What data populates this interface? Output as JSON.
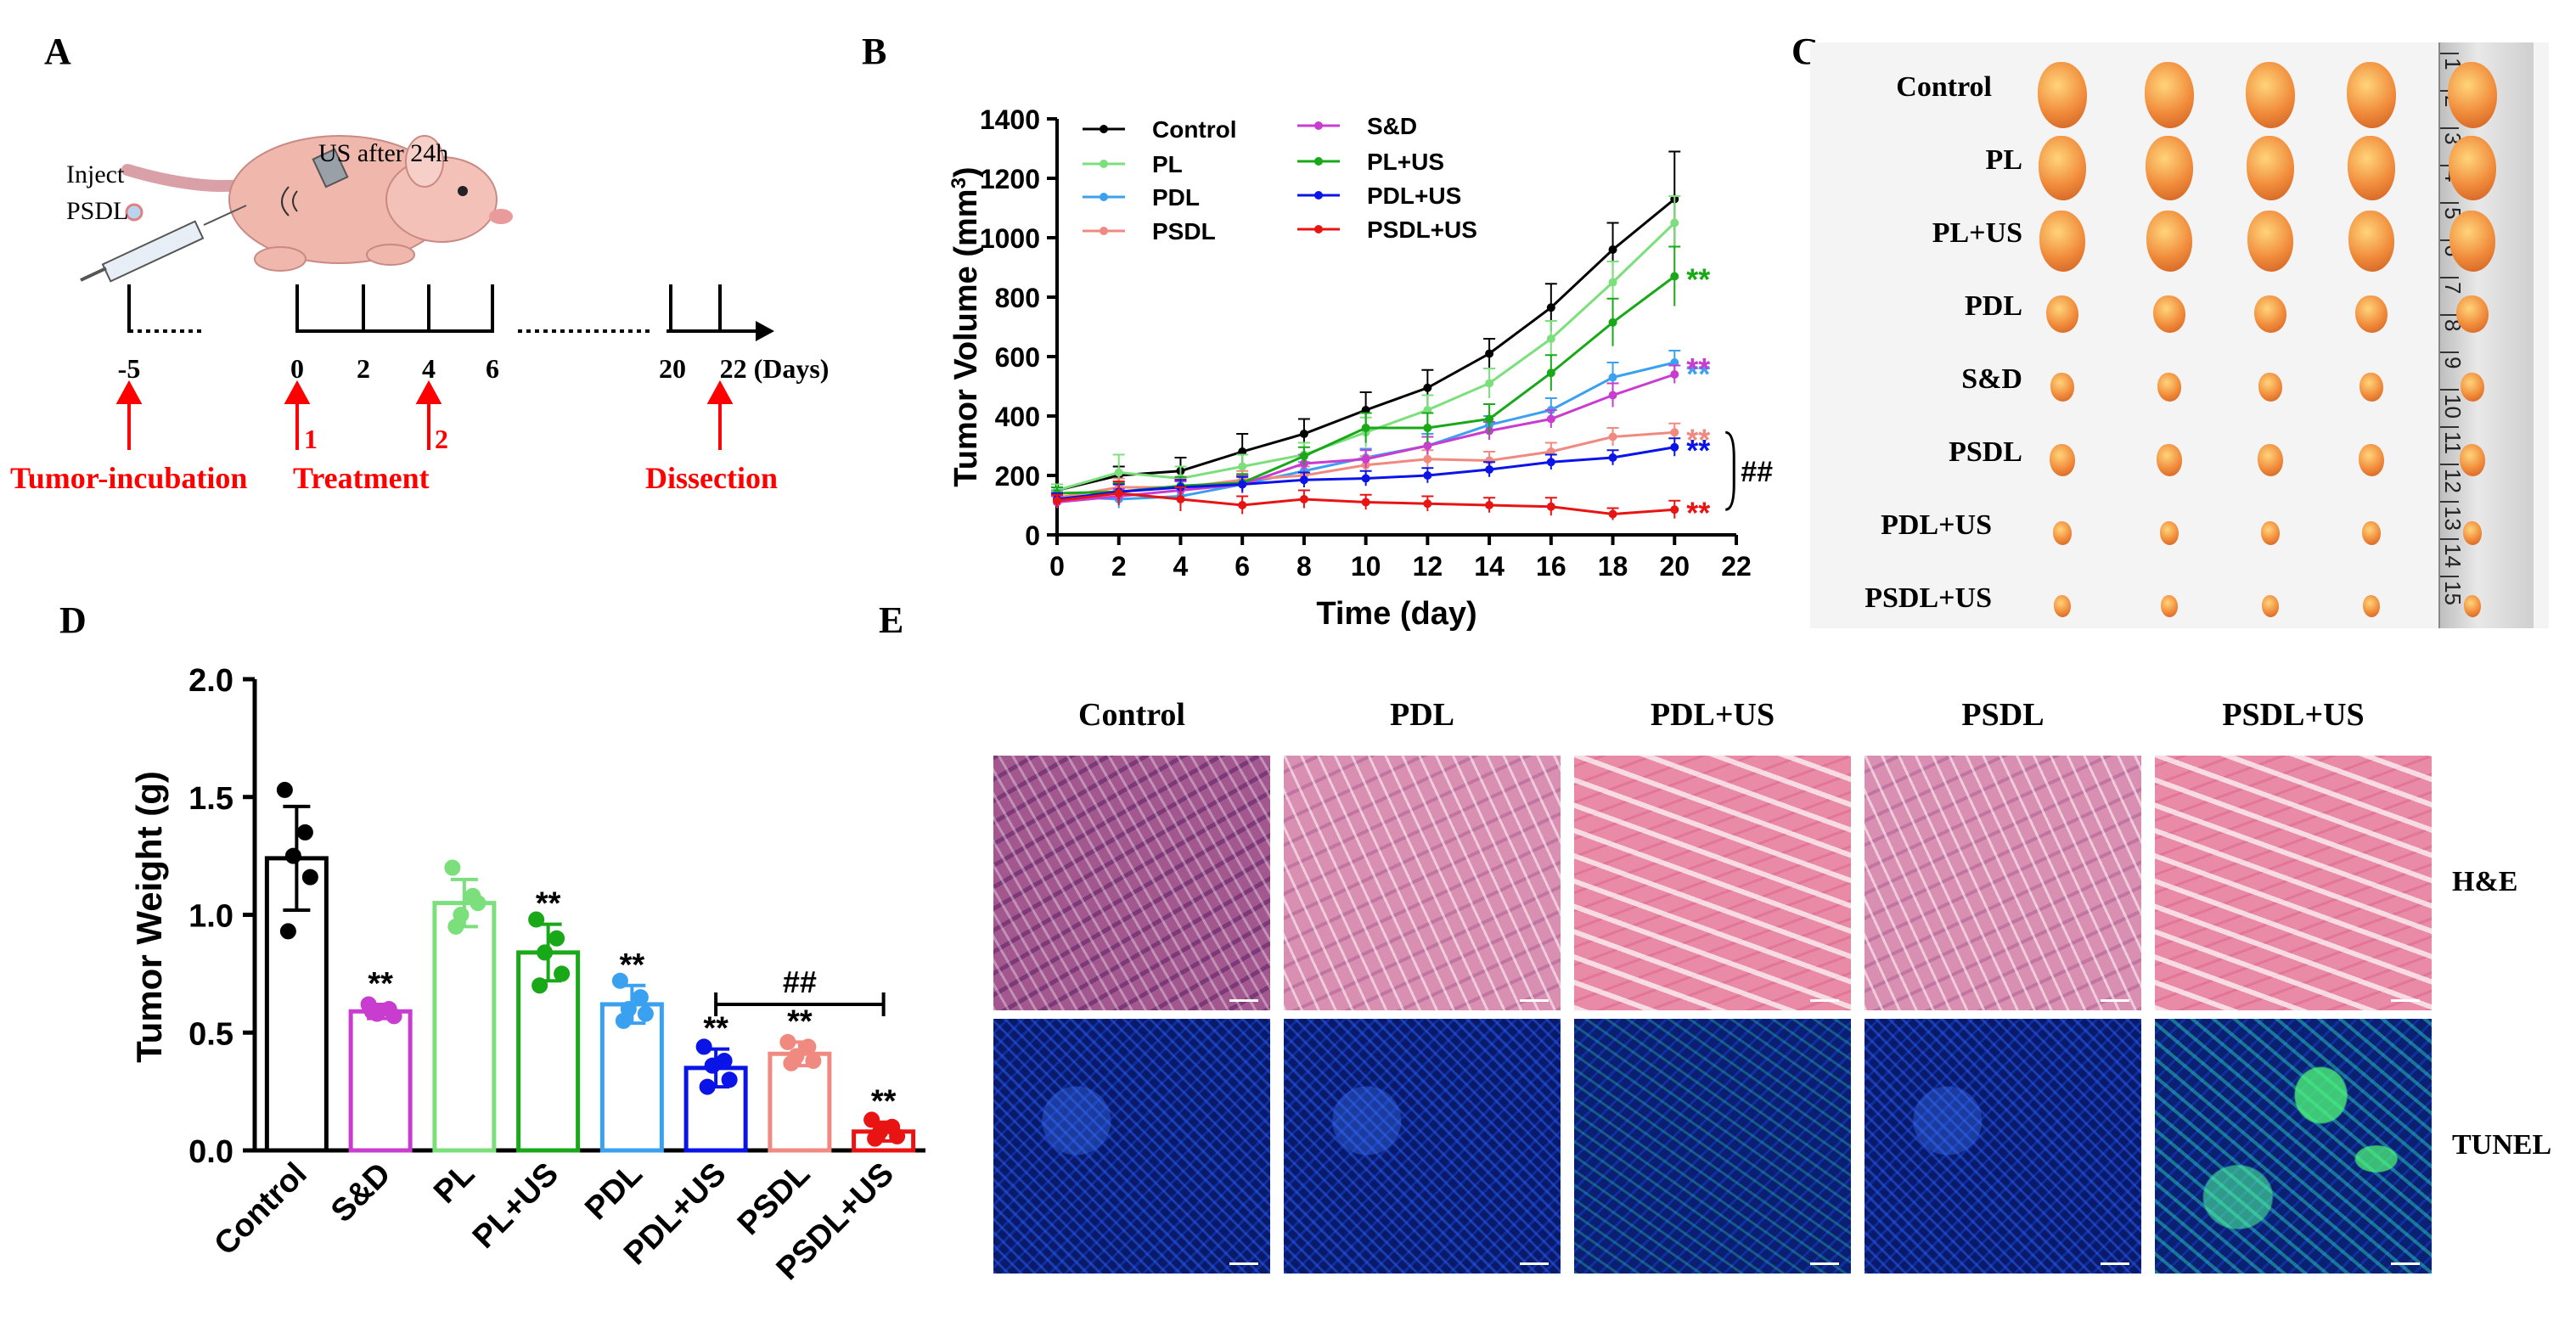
{
  "panels": {
    "A": {
      "label": "A",
      "inject_label": "Inject",
      "inject_label2": "PSDL",
      "us_label": "US after 24h",
      "ticks": [
        "-5",
        "0",
        "2",
        "4",
        "6",
        "20",
        "22 (Days)"
      ],
      "markers": [
        {
          "label": "Tumor-incubation"
        },
        {
          "label": "Treatment",
          "subs": [
            "1",
            "2"
          ]
        },
        {
          "label": "Dissection"
        }
      ]
    },
    "B": {
      "label": "B"
    },
    "C": {
      "label": "C",
      "groups": [
        "Control",
        "PL",
        "PL+US",
        "PDL",
        "S&D",
        "PSDL",
        "PDL+US",
        "PSDL+US"
      ],
      "ruler_numbers": [
        "1",
        "2",
        "3",
        "4",
        "5",
        "6",
        "7",
        "8",
        "9",
        "10",
        "11",
        "12",
        "13",
        "14",
        "15"
      ]
    },
    "D": {
      "label": "D"
    },
    "E": {
      "label": "E",
      "columns": [
        "Control",
        "PDL",
        "PDL+US",
        "PSDL",
        "PSDL+US"
      ],
      "rows": [
        "H&E",
        "TUNEL"
      ]
    }
  },
  "colors": {
    "Control": "#000000",
    "PL": "#7be07b",
    "PDL": "#3aa0f0",
    "PSDL": "#f08a80",
    "S&D": "#c83cd0",
    "PL+US": "#18a818",
    "PDL+US": "#0a14e6",
    "PSDL+US": "#e81414",
    "red": "#ff0000"
  },
  "chart_data": [
    {
      "id": "B",
      "type": "line",
      "xlabel": "Time (day)",
      "ylabel": "Tumor Volume (mm",
      "ylabel_sup": "3",
      "ylabel_close": ")",
      "xlim": [
        0,
        22
      ],
      "ylim": [
        0,
        1400
      ],
      "xticks": [
        0,
        2,
        4,
        6,
        8,
        10,
        12,
        14,
        16,
        18,
        20,
        22
      ],
      "yticks": [
        0,
        200,
        400,
        600,
        800,
        1000,
        1200,
        1400
      ],
      "x": [
        0,
        2,
        4,
        6,
        8,
        10,
        12,
        14,
        16,
        18,
        20
      ],
      "legend": [
        "Control",
        "PL",
        "PDL",
        "PSDL",
        "S&D",
        "PL+US",
        "PDL+US",
        "PSDL+US"
      ],
      "series": [
        {
          "name": "Control",
          "values": [
            150,
            200,
            215,
            280,
            340,
            420,
            495,
            610,
            765,
            960,
            1130
          ],
          "err": [
            20,
            30,
            45,
            60,
            50,
            60,
            60,
            50,
            80,
            90,
            160
          ],
          "sig": ""
        },
        {
          "name": "PL",
          "values": [
            150,
            210,
            190,
            230,
            270,
            345,
            420,
            510,
            660,
            850,
            1050
          ],
          "err": [
            20,
            60,
            40,
            40,
            40,
            50,
            50,
            50,
            60,
            70,
            90
          ],
          "sig": ""
        },
        {
          "name": "PDL",
          "values": [
            130,
            120,
            130,
            170,
            215,
            260,
            300,
            370,
            420,
            530,
            580
          ],
          "err": [
            20,
            30,
            30,
            30,
            30,
            30,
            40,
            30,
            40,
            50,
            40
          ],
          "sig": "**"
        },
        {
          "name": "PSDL",
          "values": [
            125,
            160,
            160,
            185,
            200,
            235,
            255,
            250,
            280,
            330,
            345
          ],
          "err": [
            20,
            30,
            30,
            30,
            30,
            30,
            30,
            30,
            30,
            30,
            30
          ],
          "sig": "**"
        },
        {
          "name": "S&D",
          "values": [
            110,
            130,
            150,
            170,
            240,
            255,
            300,
            350,
            390,
            470,
            540
          ],
          "err": [
            20,
            25,
            30,
            30,
            30,
            30,
            30,
            30,
            30,
            40,
            30
          ],
          "sig": "**"
        },
        {
          "name": "PL+US",
          "values": [
            140,
            145,
            165,
            175,
            265,
            360,
            360,
            390,
            545,
            715,
            870
          ],
          "err": [
            20,
            30,
            30,
            30,
            30,
            50,
            50,
            50,
            60,
            80,
            100
          ],
          "sig": "**"
        },
        {
          "name": "PDL+US",
          "values": [
            120,
            145,
            160,
            170,
            185,
            190,
            200,
            220,
            245,
            260,
            295
          ],
          "err": [
            20,
            25,
            25,
            25,
            25,
            25,
            25,
            25,
            25,
            25,
            30
          ],
          "sig": "**"
        },
        {
          "name": "PSDL+US",
          "values": [
            115,
            140,
            120,
            100,
            120,
            110,
            105,
            100,
            95,
            70,
            85
          ],
          "err": [
            20,
            40,
            40,
            30,
            30,
            25,
            25,
            25,
            30,
            20,
            30
          ],
          "sig": "**"
        }
      ],
      "bracket_label": "##"
    },
    {
      "id": "D",
      "type": "bar",
      "ylabel": "Tumor Weight (g)",
      "ylim": [
        0,
        2.0
      ],
      "yticks": [
        "0.0",
        "0.5",
        "1.0",
        "1.5",
        "2.0"
      ],
      "categories": [
        "Control",
        "S&D",
        "PL",
        "PL+US",
        "PDL",
        "PDL+US",
        "PSDL",
        "PSDL+US"
      ],
      "values": [
        1.24,
        0.59,
        1.05,
        0.84,
        0.62,
        0.35,
        0.41,
        0.08
      ],
      "err": [
        0.22,
        0.03,
        0.1,
        0.12,
        0.08,
        0.08,
        0.05,
        0.04
      ],
      "points": [
        [
          1.53,
          1.35,
          1.25,
          1.16,
          0.93
        ],
        [
          0.62,
          0.6,
          0.58,
          0.57,
          0.59
        ],
        [
          1.2,
          1.08,
          1.0,
          1.05,
          0.95
        ],
        [
          0.98,
          0.9,
          0.84,
          0.75,
          0.7
        ],
        [
          0.72,
          0.65,
          0.6,
          0.58,
          0.55
        ],
        [
          0.44,
          0.38,
          0.36,
          0.3,
          0.27
        ],
        [
          0.46,
          0.44,
          0.4,
          0.38,
          0.37
        ],
        [
          0.13,
          0.1,
          0.08,
          0.06,
          0.05
        ]
      ],
      "sig": [
        "",
        "**",
        "",
        "**",
        "**",
        "**",
        "**",
        "**"
      ],
      "bracket_label": "##"
    }
  ]
}
